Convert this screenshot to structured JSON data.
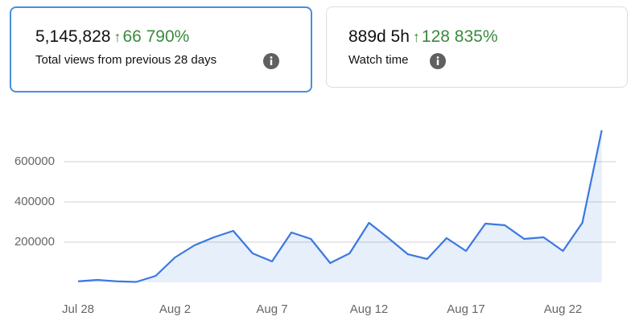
{
  "cards": [
    {
      "value": "5,145,828",
      "change": "66 790%",
      "label": "Total views from previous 28 days"
    },
    {
      "value": "889d 5h",
      "change": "128 835%",
      "label": "Watch time"
    }
  ],
  "chart_data": {
    "type": "area",
    "categories": [
      "Jul 28",
      null,
      null,
      null,
      null,
      "Aug 2",
      null,
      null,
      null,
      null,
      "Aug 7",
      null,
      null,
      null,
      null,
      "Aug 12",
      null,
      null,
      null,
      null,
      "Aug 17",
      null,
      null,
      null,
      null,
      "Aug 22",
      null,
      null
    ],
    "series": [
      {
        "color": "#3b78e0",
        "values": [
          5000,
          12000,
          5000,
          2000,
          32000,
          124000,
          184000,
          224000,
          256000,
          144000,
          104000,
          248000,
          216000,
          96000,
          144000,
          296000,
          220000,
          140000,
          116000,
          220000,
          156000,
          292000,
          284000,
          216000,
          224000,
          156000,
          296000,
          756000
        ]
      }
    ],
    "ylim": [
      0,
      800000
    ],
    "yticks": [
      200000,
      400000,
      600000
    ],
    "grid": true
  }
}
